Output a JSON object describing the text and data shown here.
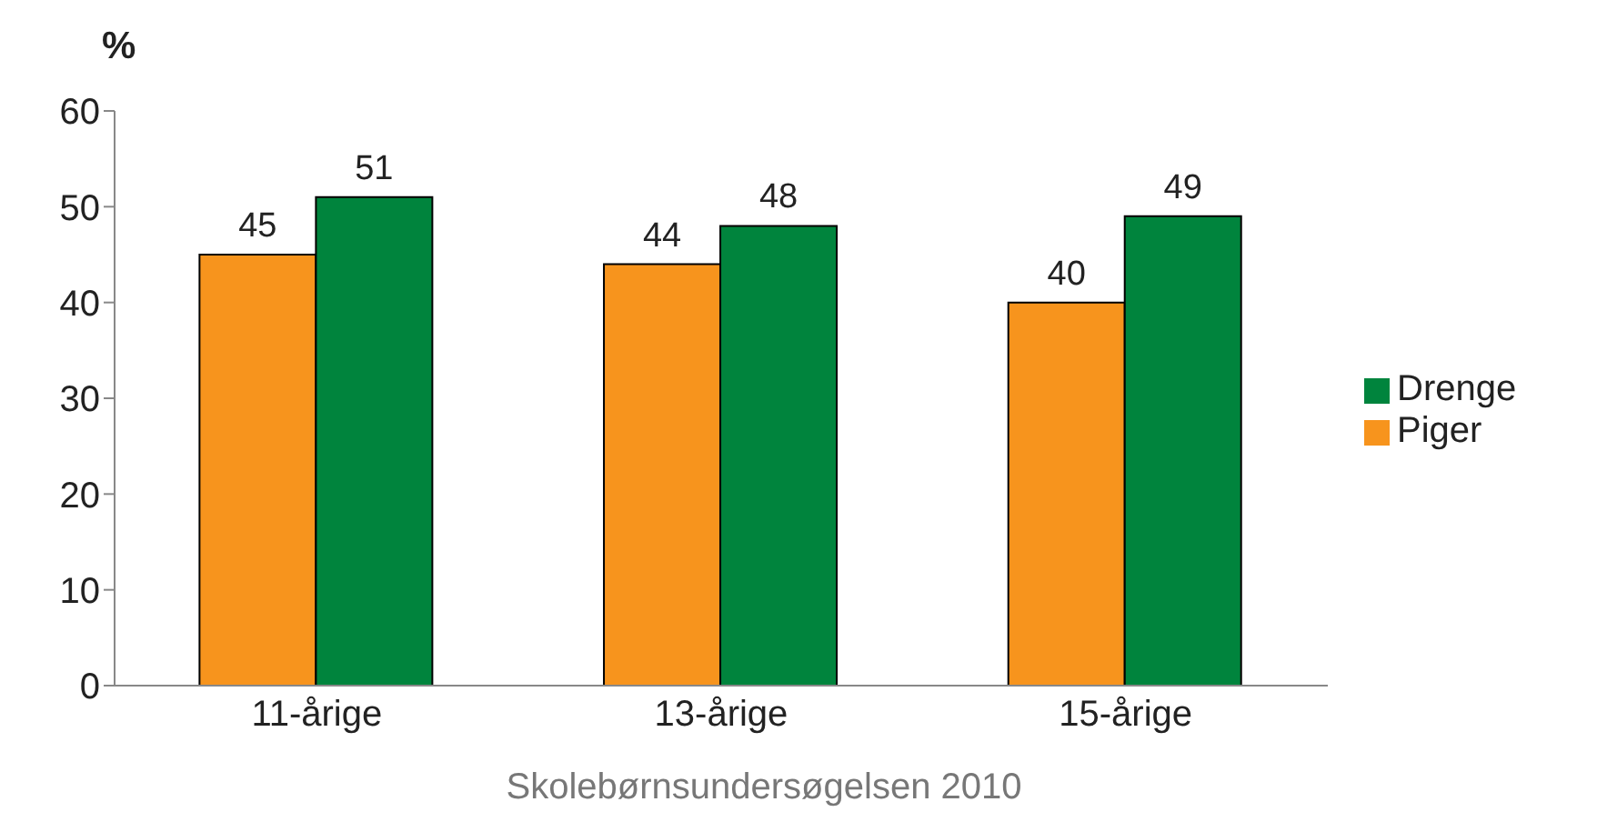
{
  "chart_data": {
    "type": "bar",
    "ylabel": "%",
    "categories": [
      "11-årige",
      "13-årige",
      "15-årige"
    ],
    "series": [
      {
        "name": "Piger",
        "color": "#f7941d",
        "values": [
          45,
          44,
          40
        ]
      },
      {
        "name": "Drenge",
        "color": "#00843d",
        "values": [
          51,
          48,
          49
        ]
      }
    ],
    "ylim": [
      0,
      60
    ],
    "yticks": [
      0,
      10,
      20,
      30,
      40,
      50,
      60
    ],
    "grid": false,
    "legend": "right",
    "data_labels": true,
    "annotations": [
      "Skolebørnsundersøgelsen 2010"
    ]
  }
}
